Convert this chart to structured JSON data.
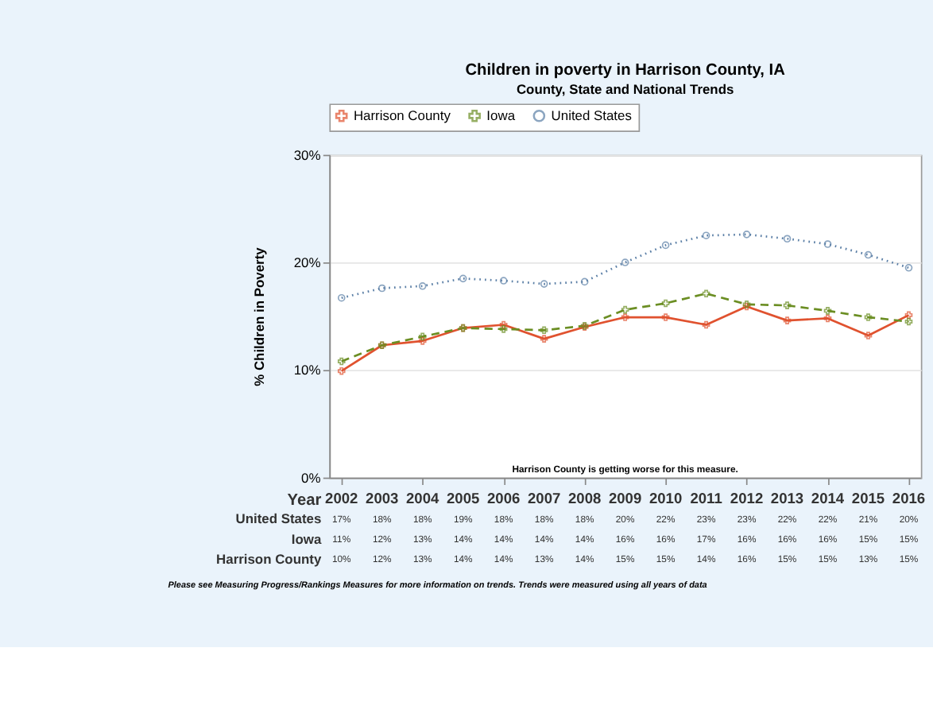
{
  "chart_data": {
    "type": "line",
    "title": "Children in poverty in Harrison County, IA",
    "subtitle": "County, State and National Trends",
    "xlabel": "Year",
    "ylabel": "% Children in Poverty",
    "categories": [
      "2002",
      "2003",
      "2004",
      "2005",
      "2006",
      "2007",
      "2008",
      "2009",
      "2010",
      "2011",
      "2012",
      "2013",
      "2014",
      "2015",
      "2016"
    ],
    "series": [
      {
        "name": "Harrison County",
        "color": "#e0522f",
        "marker": "cross",
        "line_style": "solid",
        "values": [
          9.9,
          12.3,
          12.7,
          13.9,
          14.2,
          12.9,
          14.0,
          14.9,
          14.9,
          14.2,
          15.9,
          14.6,
          14.8,
          13.2,
          15.1
        ],
        "value_labels": [
          "10%",
          "12%",
          "13%",
          "14%",
          "14%",
          "13%",
          "14%",
          "15%",
          "15%",
          "14%",
          "16%",
          "15%",
          "15%",
          "13%",
          "15%"
        ]
      },
      {
        "name": "Iowa",
        "color": "#6b8e23",
        "marker": "cross",
        "line_style": "dashed",
        "values": [
          10.8,
          12.3,
          13.1,
          13.9,
          13.8,
          13.7,
          14.1,
          15.6,
          16.2,
          17.1,
          16.1,
          16.0,
          15.5,
          14.9,
          14.5
        ],
        "value_labels": [
          "11%",
          "12%",
          "13%",
          "14%",
          "14%",
          "14%",
          "14%",
          "16%",
          "16%",
          "17%",
          "16%",
          "16%",
          "16%",
          "15%",
          "15%"
        ]
      },
      {
        "name": "United States",
        "color": "#5b7fa6",
        "marker": "circle",
        "line_style": "dotted",
        "values": [
          16.7,
          17.6,
          17.8,
          18.5,
          18.3,
          18.0,
          18.2,
          20.0,
          21.6,
          22.5,
          22.6,
          22.2,
          21.7,
          20.7,
          19.5
        ],
        "value_labels": [
          "17%",
          "18%",
          "18%",
          "19%",
          "18%",
          "18%",
          "18%",
          "20%",
          "22%",
          "23%",
          "23%",
          "22%",
          "22%",
          "21%",
          "20%"
        ]
      }
    ],
    "ylim": [
      0,
      30
    ],
    "yticks": [
      {
        "value": 0,
        "label": "0%"
      },
      {
        "value": 10,
        "label": "10%"
      },
      {
        "value": 20,
        "label": "20%"
      },
      {
        "value": 30,
        "label": "30%"
      }
    ],
    "grid": "y",
    "legend": "top",
    "annotations": [
      "Harrison County is getting worse for this measure.",
      "Please see Measuring Progress/Rankings Measures for more information on trends. Trends were measured using all years of data"
    ]
  }
}
